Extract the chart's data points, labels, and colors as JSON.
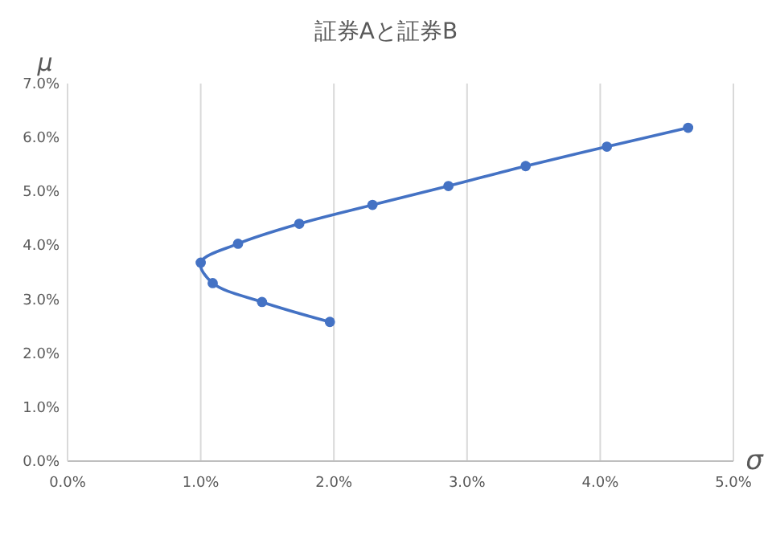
{
  "chart_data": {
    "type": "line",
    "title": "証券Aと証券B",
    "xlabel": "σ",
    "ylabel": "μ",
    "series": [
      {
        "color": "#4472c4",
        "x": [
          1.97,
          1.46,
          1.09,
          1.0,
          1.28,
          1.74,
          2.29,
          2.86,
          3.44,
          4.05,
          4.66
        ],
        "values": [
          2.58,
          2.95,
          3.3,
          3.68,
          4.03,
          4.4,
          4.75,
          5.1,
          5.47,
          5.83,
          6.18
        ]
      }
    ],
    "xlim": [
      0,
      5
    ],
    "xticks": [
      {
        "value": 0,
        "label": "0.0%"
      },
      {
        "value": 1,
        "label": "1.0%"
      },
      {
        "value": 2,
        "label": "2.0%"
      },
      {
        "value": 3,
        "label": "3.0%"
      },
      {
        "value": 4,
        "label": "4.0%"
      },
      {
        "value": 5,
        "label": "5.0%"
      }
    ],
    "ylim": [
      0,
      7
    ],
    "yticks": [
      {
        "value": 0,
        "label": "0.0%"
      },
      {
        "value": 1,
        "label": "1.0%"
      },
      {
        "value": 2,
        "label": "2.0%"
      },
      {
        "value": 3,
        "label": "3.0%"
      },
      {
        "value": 4,
        "label": "4.0%"
      },
      {
        "value": 5,
        "label": "5.0%"
      },
      {
        "value": 6,
        "label": "6.0%"
      },
      {
        "value": 7,
        "label": "7.0%"
      }
    ],
    "grid": "x",
    "marker": "circle",
    "line_style": "solid"
  }
}
